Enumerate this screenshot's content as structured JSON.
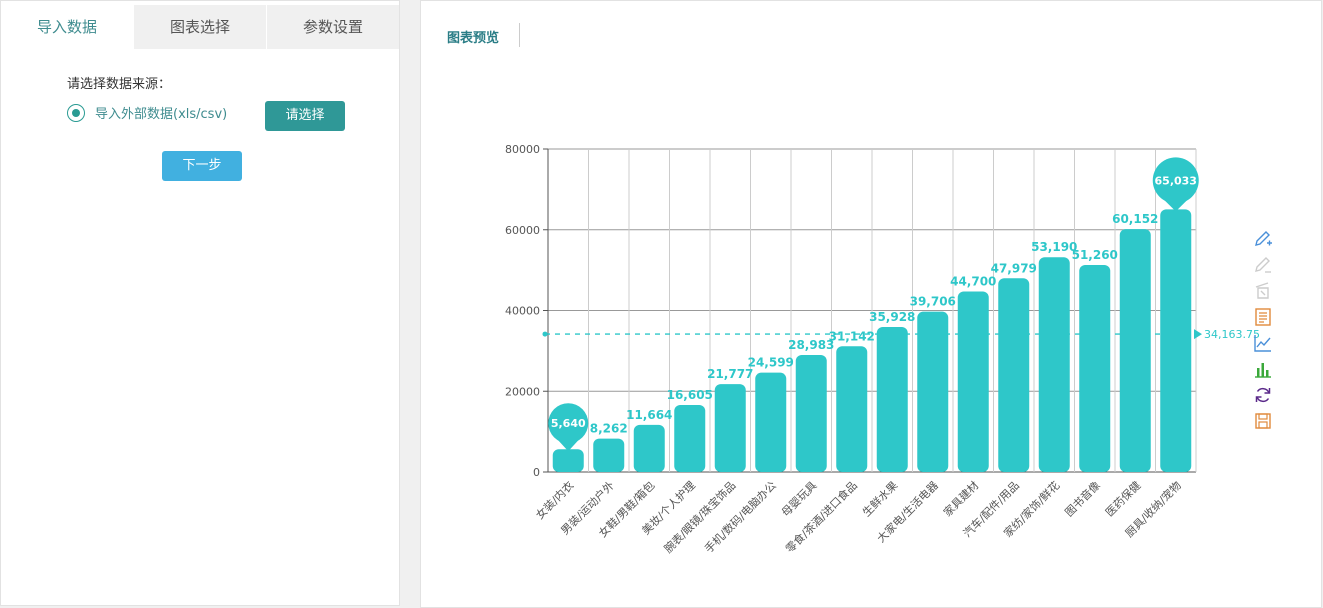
{
  "left": {
    "tabs": [
      {
        "label": "导入数据",
        "active": true
      },
      {
        "label": "图表选择",
        "active": false
      },
      {
        "label": "参数设置",
        "active": false
      }
    ],
    "source_label": "请选择数据来源：",
    "radio_label": "导入外部数据(xls/csv)",
    "choose_button": "请选择",
    "next_button": "下一步"
  },
  "preview": {
    "title": "图表预览"
  },
  "colors": {
    "bar": "#2ec7c9",
    "accent": "#2f9897",
    "next": "#41b0e0"
  },
  "chart_data": {
    "type": "bar",
    "categories": [
      "女装/内衣",
      "男装/运动户外",
      "女鞋/男鞋/箱包",
      "美妆/个人护理",
      "腕表/眼镜/珠宝饰品",
      "手机/数码/电脑办公",
      "母婴玩具",
      "零食/茶酒/进口食品",
      "生鲜水果",
      "大家电/生活电器",
      "家具建材",
      "汽车/配件/用品",
      "家纺/家饰/鲜花",
      "图书音像",
      "医药保健",
      "厨具/收纳/宠物"
    ],
    "values": [
      5640,
      8262,
      11664,
      16605,
      21777,
      24599,
      28983,
      31142,
      35928,
      39706,
      44700,
      47979,
      53190,
      51260,
      60152,
      65033
    ],
    "value_labels": [
      "5,640",
      "8,262",
      "11,664",
      "16,605",
      "21,777",
      "24,599",
      "28,983",
      "31,142",
      "35,928",
      "39,706",
      "44,700",
      "47,979",
      "53,190",
      "51,260",
      "60,152",
      "65,033"
    ],
    "y_ticks": [
      "0",
      "20000",
      "40000",
      "60000",
      "80000"
    ],
    "ylim": [
      0,
      80000
    ],
    "average": 34163.75,
    "average_label": "34,163.75",
    "min_marker_index": 0,
    "max_marker_index": 15,
    "grid": true
  },
  "toolbox": [
    {
      "name": "mark-pen-icon",
      "color": "#4a90d9"
    },
    {
      "name": "erase-pen-icon",
      "color": "#cccccc"
    },
    {
      "name": "clear-all-icon",
      "color": "#cccccc"
    },
    {
      "name": "data-view-icon",
      "color": "#e08a3c"
    },
    {
      "name": "line-chart-icon",
      "color": "#4a90d9"
    },
    {
      "name": "bar-chart-icon",
      "color": "#3aa83a"
    },
    {
      "name": "restore-icon",
      "color": "#5b2a8a"
    },
    {
      "name": "save-image-icon",
      "color": "#e08a3c"
    }
  ]
}
